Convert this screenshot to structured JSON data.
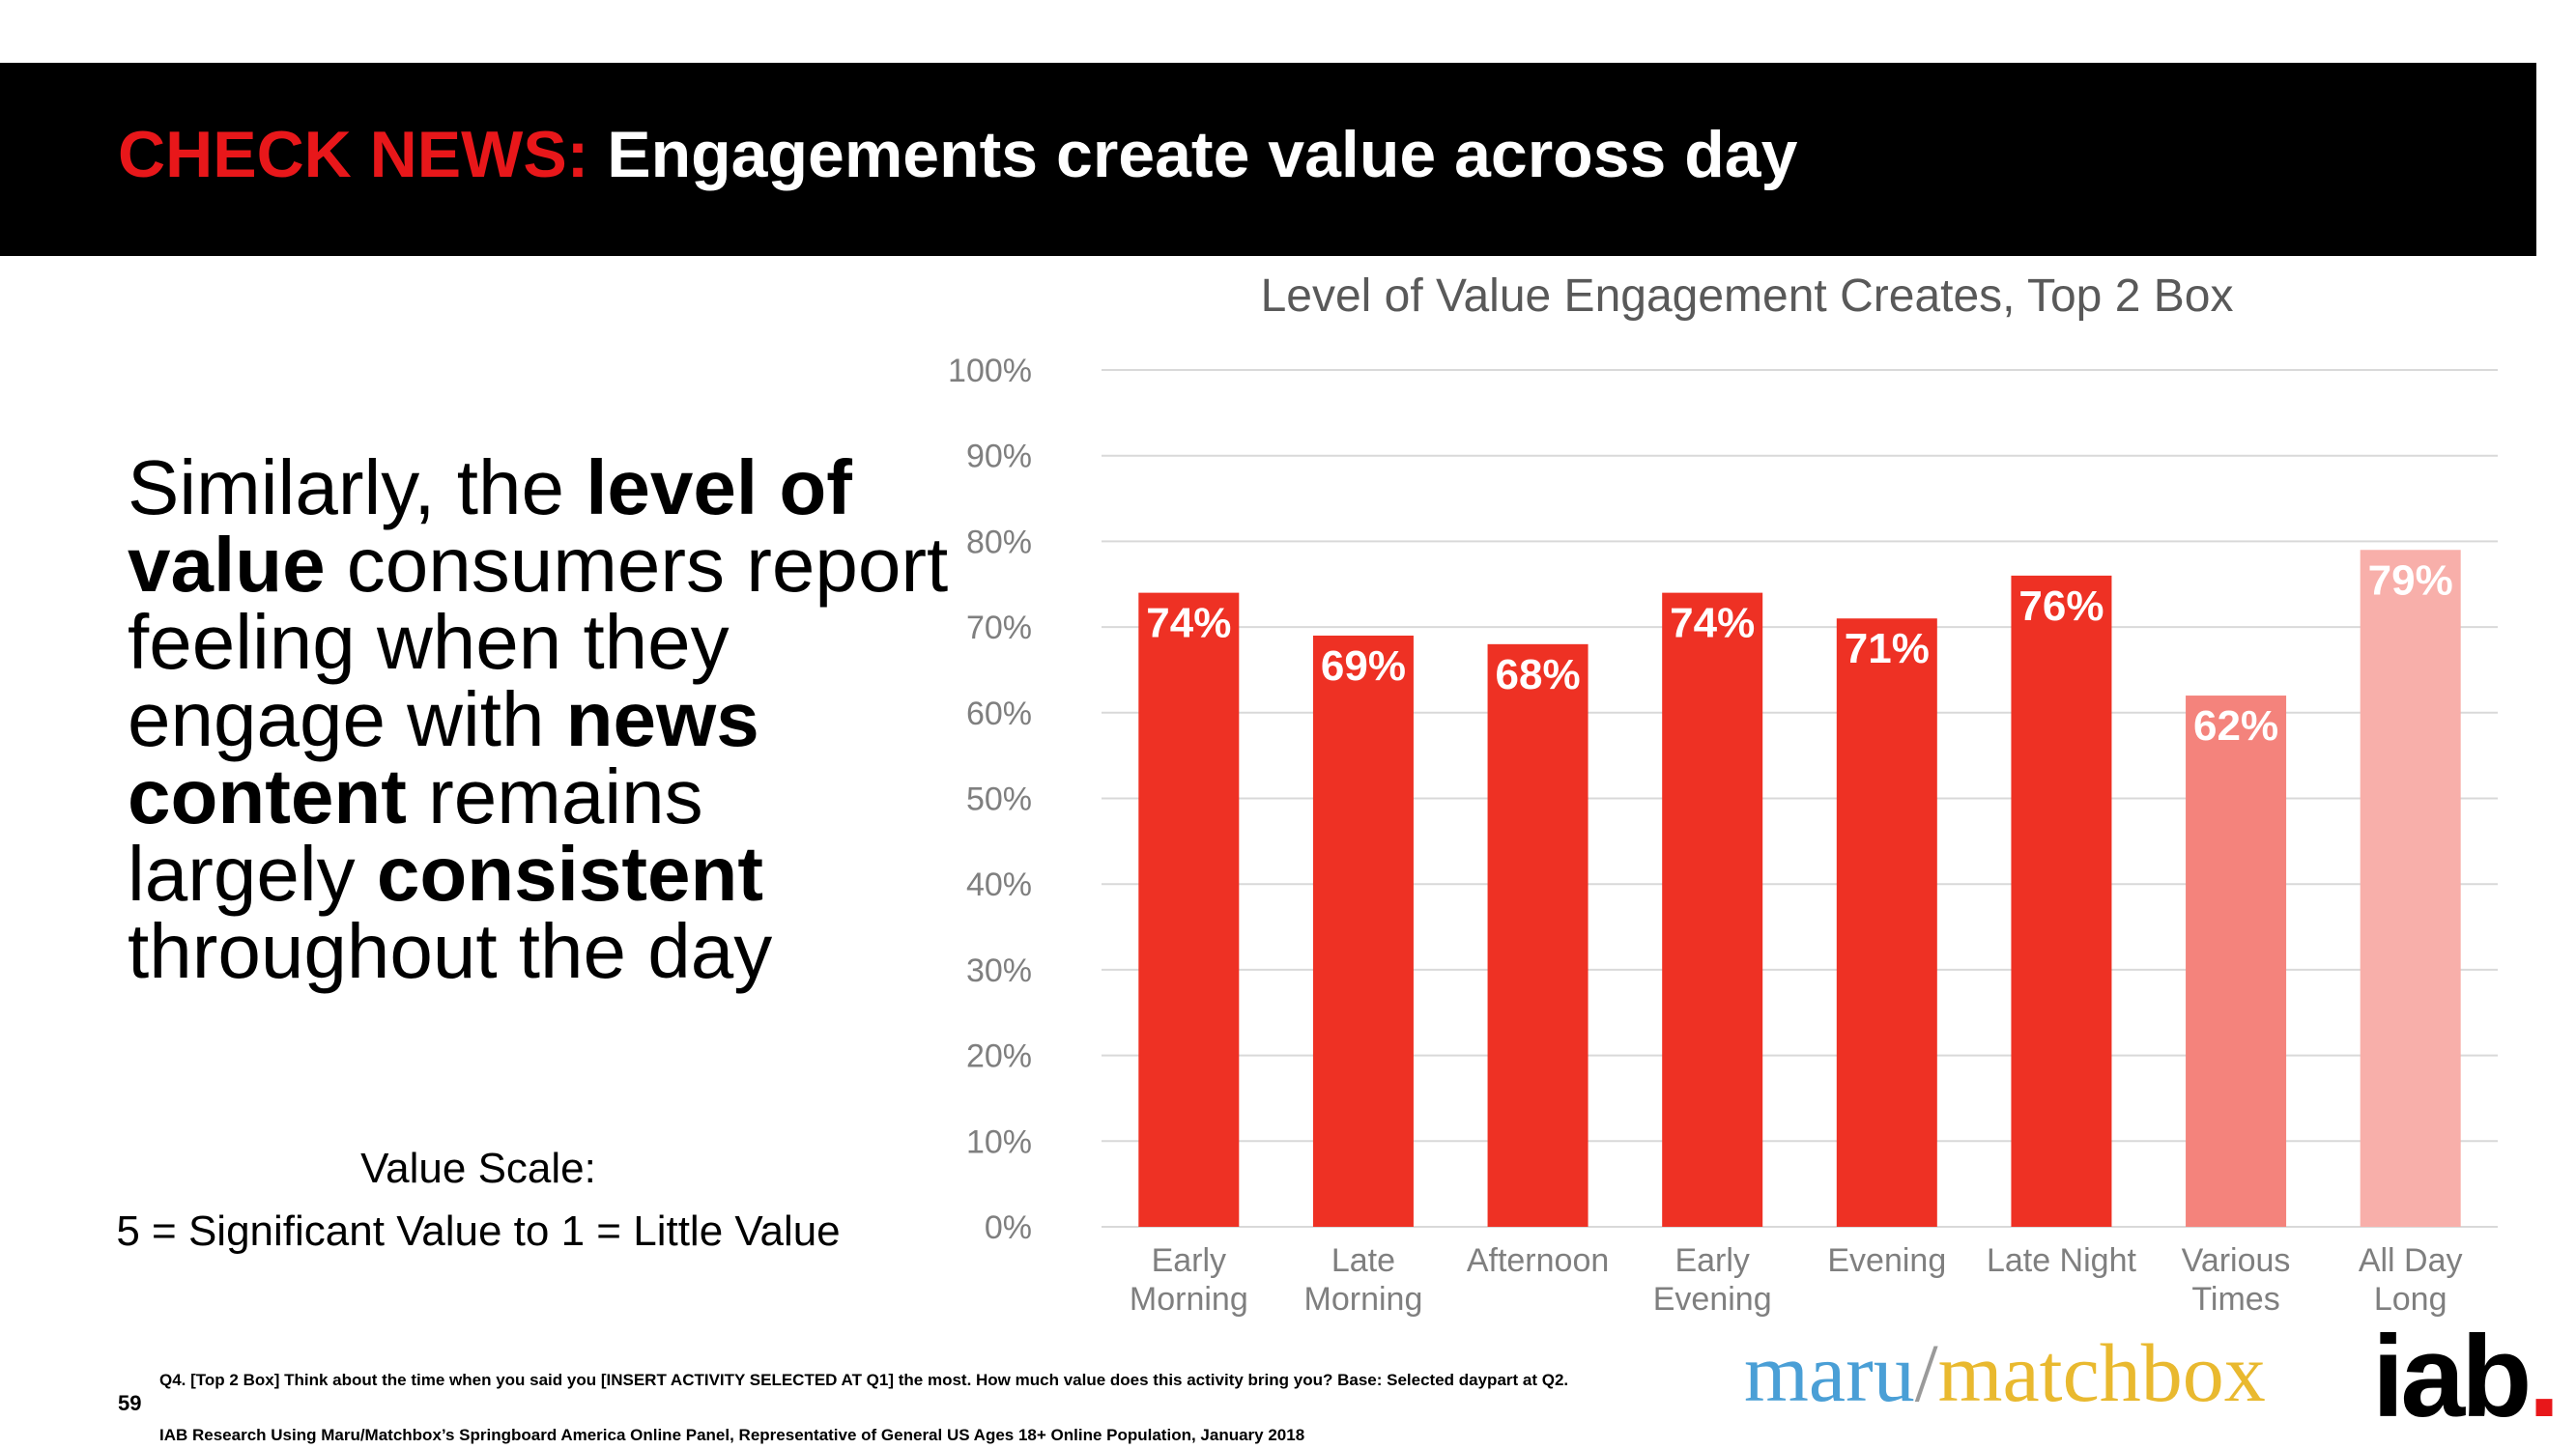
{
  "header": {
    "title_prefix": "CHECK NEWS:",
    "title_main": "Engagements create value across day"
  },
  "body": {
    "p1": "Similarly, the ",
    "b1": "level of value",
    "p2": " consumers report feeling when they engage with ",
    "b2": "news content",
    "p3": " remains largely ",
    "b3": "consistent",
    "p4": " throughout the day"
  },
  "scale": {
    "line1": "Value Scale:",
    "line2": "5 = Significant Value to 1 = Little Value"
  },
  "colors": {
    "header_bg": "#000000",
    "accent_red": "#e8171a",
    "bar_main": "#ee3124",
    "bar_various": "#f4837c",
    "bar_allday": "#f8afaa",
    "grid": "#d9d9d9",
    "axis_text": "#7f7f7f"
  },
  "chart_data": {
    "type": "bar",
    "title": "Level of Value Engagement Creates, Top 2 Box",
    "categories": [
      [
        "Early",
        "Morning"
      ],
      [
        "Late",
        "Morning"
      ],
      [
        "Afternoon"
      ],
      [
        "Early",
        "Evening"
      ],
      [
        "Evening"
      ],
      [
        "Late Night"
      ],
      [
        "Various",
        "Times"
      ],
      [
        "All Day",
        "Long"
      ]
    ],
    "values": [
      74,
      69,
      68,
      74,
      71,
      76,
      62,
      79
    ],
    "value_labels": [
      "74%",
      "69%",
      "68%",
      "74%",
      "71%",
      "76%",
      "62%",
      "79%"
    ],
    "bar_colors": [
      "#ee3124",
      "#ee3124",
      "#ee3124",
      "#ee3124",
      "#ee3124",
      "#ee3124",
      "#f4837c",
      "#f8afaa"
    ],
    "yticks": [
      "0%",
      "10%",
      "20%",
      "30%",
      "40%",
      "50%",
      "60%",
      "70%",
      "80%",
      "90%",
      "100%"
    ],
    "ylim": [
      0,
      100
    ],
    "xlabel": "",
    "ylabel": "",
    "grid": true,
    "legend": "none"
  },
  "footer": {
    "page_number": "59",
    "note1": "Q4. [Top 2 Box] Think about the time when you said you [INSERT ACTIVITY SELECTED AT Q1] the most.  How much value does this activity bring you? Base: Selected daypart at Q2.",
    "note2": "IAB Research Using Maru/Matchbox’s Springboard America Online Panel, Representative of General US Ages 18+ Online Population, January 2018"
  },
  "logos": {
    "maru": "maru",
    "slash": "/",
    "matchbox": "matchbox",
    "iab": "iab",
    "iab_dot": "."
  }
}
